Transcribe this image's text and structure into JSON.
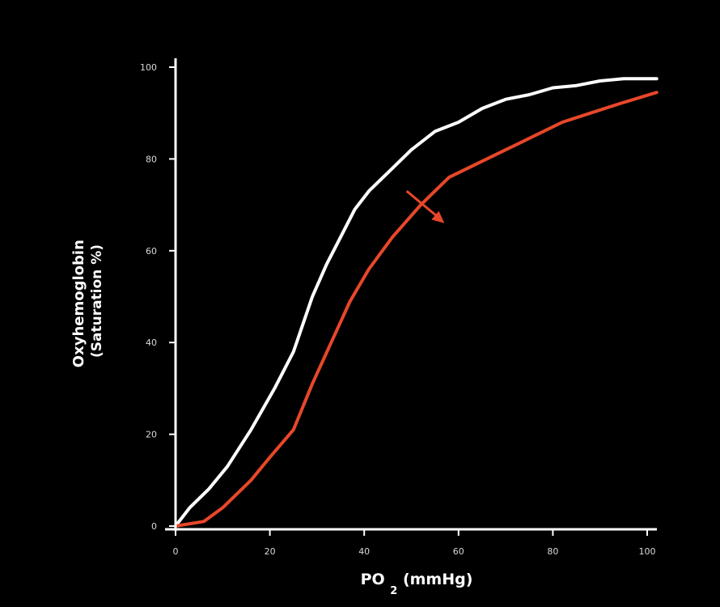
{
  "chart_data": {
    "type": "line",
    "title": "",
    "ylabel_line1": "Oxyhemoglobin",
    "ylabel_line2": "(Saturation %)",
    "xlabel_main": "PO",
    "xlabel_sub": "2",
    "xlabel_unit": " (mmHg)",
    "xlim": [
      0,
      102
    ],
    "ylim": [
      0,
      100
    ],
    "xticks": [
      0,
      20,
      40,
      60,
      80,
      100
    ],
    "yticks": [
      0,
      20,
      40,
      60,
      80,
      100
    ],
    "grid": false,
    "annotation": {
      "type": "arrow",
      "from": [
        49,
        73
      ],
      "to": [
        57,
        66
      ],
      "color": "#e8472a"
    },
    "series": [
      {
        "color": "#ffffff",
        "points": [
          [
            0,
            0
          ],
          [
            3,
            4
          ],
          [
            7,
            8
          ],
          [
            11,
            13
          ],
          [
            16,
            21
          ],
          [
            21,
            30
          ],
          [
            25,
            38
          ],
          [
            29,
            50
          ],
          [
            32,
            57
          ],
          [
            35,
            63
          ],
          [
            38,
            69
          ],
          [
            41,
            73
          ],
          [
            45,
            77
          ],
          [
            50,
            82
          ],
          [
            55,
            86
          ],
          [
            60,
            88
          ],
          [
            65,
            91
          ],
          [
            70,
            93
          ],
          [
            75,
            94
          ],
          [
            80,
            95.5
          ],
          [
            85,
            96
          ],
          [
            90,
            97
          ],
          [
            95,
            97.5
          ],
          [
            102,
            97.5
          ]
        ]
      },
      {
        "color": "#e8472a",
        "points": [
          [
            0,
            0
          ],
          [
            6,
            1
          ],
          [
            10,
            4
          ],
          [
            16,
            10
          ],
          [
            20,
            15
          ],
          [
            25,
            21
          ],
          [
            29,
            31
          ],
          [
            33,
            40
          ],
          [
            37,
            49
          ],
          [
            41,
            56
          ],
          [
            46,
            63
          ],
          [
            52,
            70
          ],
          [
            58,
            76
          ],
          [
            64,
            79
          ],
          [
            70,
            82
          ],
          [
            76,
            85
          ],
          [
            82,
            88
          ],
          [
            88,
            90
          ],
          [
            94,
            92
          ],
          [
            102,
            94.5
          ]
        ]
      }
    ]
  }
}
